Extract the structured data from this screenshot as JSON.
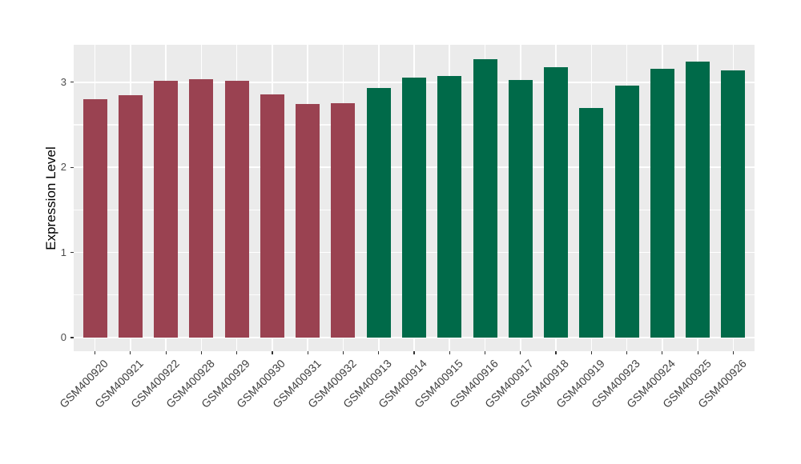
{
  "chart_data": {
    "type": "bar",
    "title": "",
    "xlabel": "",
    "ylabel": "Expression Level",
    "categories": [
      "GSM400920",
      "GSM400921",
      "GSM400922",
      "GSM400928",
      "GSM400929",
      "GSM400930",
      "GSM400931",
      "GSM400932",
      "GSM400913",
      "GSM400914",
      "GSM400915",
      "GSM400916",
      "GSM400917",
      "GSM400918",
      "GSM400919",
      "GSM400923",
      "GSM400924",
      "GSM400925",
      "GSM400926"
    ],
    "values": [
      2.8,
      2.85,
      3.02,
      3.04,
      3.02,
      2.86,
      2.74,
      2.75,
      2.93,
      3.05,
      3.07,
      3.27,
      3.03,
      3.18,
      2.7,
      2.96,
      3.16,
      3.24,
      3.14
    ],
    "groups": [
      "A",
      "A",
      "A",
      "A",
      "A",
      "A",
      "A",
      "A",
      "B",
      "B",
      "B",
      "B",
      "B",
      "B",
      "B",
      "B",
      "B",
      "B",
      "B"
    ],
    "group_colors": {
      "A": "#9A4251",
      "B": "#006A49"
    },
    "yticks": [
      0,
      1,
      2,
      3
    ],
    "yticks_minor": [
      0.5,
      1.5,
      2.5
    ],
    "ylim": [
      -0.16,
      3.44
    ],
    "x_tick_rotation": 45,
    "grid": "on",
    "legend": "none",
    "panel_bg": "#EBEBEB",
    "grid_major_color": "#FFFFFF",
    "grid_minor_color": "#FFFFFF",
    "tick_mark_color": "#333333",
    "axis_text_color": "#4D4D4D",
    "x_text_color": "#404040",
    "axis_title_color": "#000000"
  }
}
